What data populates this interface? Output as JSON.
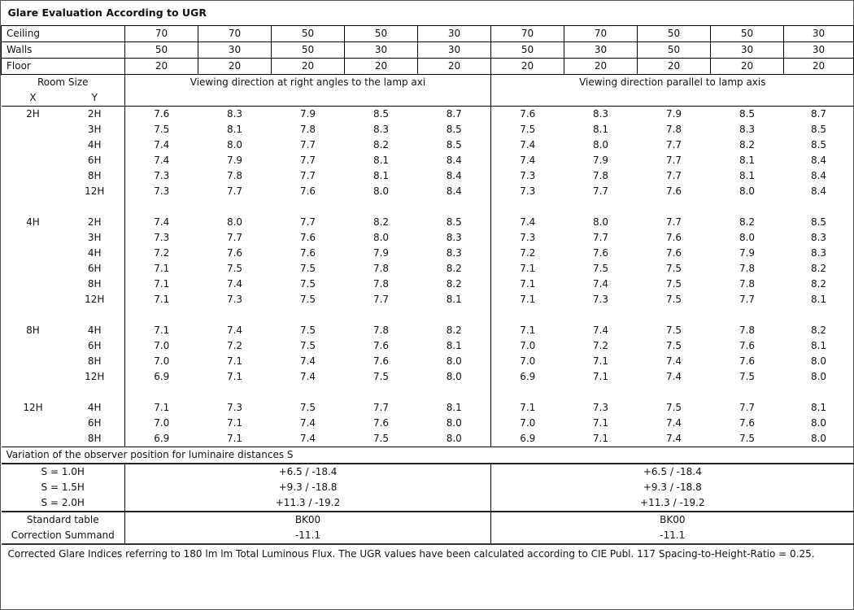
{
  "title": "Glare Evaluation According to UGR",
  "reflectances": [
    {
      "label": "Ceiling",
      "values": [
        "70",
        "70",
        "50",
        "50",
        "30",
        "70",
        "70",
        "50",
        "50",
        "30"
      ]
    },
    {
      "label": "Walls",
      "values": [
        "50",
        "30",
        "50",
        "30",
        "30",
        "50",
        "30",
        "50",
        "30",
        "30"
      ]
    },
    {
      "label": "Floor",
      "values": [
        "20",
        "20",
        "20",
        "20",
        "20",
        "20",
        "20",
        "20",
        "20",
        "20"
      ]
    }
  ],
  "header": {
    "room_size": "Room Size",
    "x": "X",
    "y": "Y",
    "perpendicular": "Viewing direction at right angles to the lamp axi",
    "parallel": "Viewing direction parallel to lamp axis"
  },
  "groups": [
    {
      "x": "2H",
      "rows": [
        {
          "y": "2H",
          "perp": [
            "7.6",
            "8.3",
            "7.9",
            "8.5",
            "8.7"
          ],
          "para": [
            "7.6",
            "8.3",
            "7.9",
            "8.5",
            "8.7"
          ]
        },
        {
          "y": "3H",
          "perp": [
            "7.5",
            "8.1",
            "7.8",
            "8.3",
            "8.5"
          ],
          "para": [
            "7.5",
            "8.1",
            "7.8",
            "8.3",
            "8.5"
          ]
        },
        {
          "y": "4H",
          "perp": [
            "7.4",
            "8.0",
            "7.7",
            "8.2",
            "8.5"
          ],
          "para": [
            "7.4",
            "8.0",
            "7.7",
            "8.2",
            "8.5"
          ]
        },
        {
          "y": "6H",
          "perp": [
            "7.4",
            "7.9",
            "7.7",
            "8.1",
            "8.4"
          ],
          "para": [
            "7.4",
            "7.9",
            "7.7",
            "8.1",
            "8.4"
          ]
        },
        {
          "y": "8H",
          "perp": [
            "7.3",
            "7.8",
            "7.7",
            "8.1",
            "8.4"
          ],
          "para": [
            "7.3",
            "7.8",
            "7.7",
            "8.1",
            "8.4"
          ]
        },
        {
          "y": "12H",
          "perp": [
            "7.3",
            "7.7",
            "7.6",
            "8.0",
            "8.4"
          ],
          "para": [
            "7.3",
            "7.7",
            "7.6",
            "8.0",
            "8.4"
          ]
        }
      ]
    },
    {
      "x": "4H",
      "rows": [
        {
          "y": "2H",
          "perp": [
            "7.4",
            "8.0",
            "7.7",
            "8.2",
            "8.5"
          ],
          "para": [
            "7.4",
            "8.0",
            "7.7",
            "8.2",
            "8.5"
          ]
        },
        {
          "y": "3H",
          "perp": [
            "7.3",
            "7.7",
            "7.6",
            "8.0",
            "8.3"
          ],
          "para": [
            "7.3",
            "7.7",
            "7.6",
            "8.0",
            "8.3"
          ]
        },
        {
          "y": "4H",
          "perp": [
            "7.2",
            "7.6",
            "7.6",
            "7.9",
            "8.3"
          ],
          "para": [
            "7.2",
            "7.6",
            "7.6",
            "7.9",
            "8.3"
          ]
        },
        {
          "y": "6H",
          "perp": [
            "7.1",
            "7.5",
            "7.5",
            "7.8",
            "8.2"
          ],
          "para": [
            "7.1",
            "7.5",
            "7.5",
            "7.8",
            "8.2"
          ]
        },
        {
          "y": "8H",
          "perp": [
            "7.1",
            "7.4",
            "7.5",
            "7.8",
            "8.2"
          ],
          "para": [
            "7.1",
            "7.4",
            "7.5",
            "7.8",
            "8.2"
          ]
        },
        {
          "y": "12H",
          "perp": [
            "7.1",
            "7.3",
            "7.5",
            "7.7",
            "8.1"
          ],
          "para": [
            "7.1",
            "7.3",
            "7.5",
            "7.7",
            "8.1"
          ]
        }
      ]
    },
    {
      "x": "8H",
      "rows": [
        {
          "y": "4H",
          "perp": [
            "7.1",
            "7.4",
            "7.5",
            "7.8",
            "8.2"
          ],
          "para": [
            "7.1",
            "7.4",
            "7.5",
            "7.8",
            "8.2"
          ]
        },
        {
          "y": "6H",
          "perp": [
            "7.0",
            "7.2",
            "7.5",
            "7.6",
            "8.1"
          ],
          "para": [
            "7.0",
            "7.2",
            "7.5",
            "7.6",
            "8.1"
          ]
        },
        {
          "y": "8H",
          "perp": [
            "7.0",
            "7.1",
            "7.4",
            "7.6",
            "8.0"
          ],
          "para": [
            "7.0",
            "7.1",
            "7.4",
            "7.6",
            "8.0"
          ]
        },
        {
          "y": "12H",
          "perp": [
            "6.9",
            "7.1",
            "7.4",
            "7.5",
            "8.0"
          ],
          "para": [
            "6.9",
            "7.1",
            "7.4",
            "7.5",
            "8.0"
          ]
        }
      ]
    },
    {
      "x": "12H",
      "rows": [
        {
          "y": "4H",
          "perp": [
            "7.1",
            "7.3",
            "7.5",
            "7.7",
            "8.1"
          ],
          "para": [
            "7.1",
            "7.3",
            "7.5",
            "7.7",
            "8.1"
          ]
        },
        {
          "y": "6H",
          "perp": [
            "7.0",
            "7.1",
            "7.4",
            "7.6",
            "8.0"
          ],
          "para": [
            "7.0",
            "7.1",
            "7.4",
            "7.6",
            "8.0"
          ]
        },
        {
          "y": "8H",
          "perp": [
            "6.9",
            "7.1",
            "7.4",
            "7.5",
            "8.0"
          ],
          "para": [
            "6.9",
            "7.1",
            "7.4",
            "7.5",
            "8.0"
          ]
        }
      ]
    }
  ],
  "variation": {
    "title": "Variation of the observer position for luminaire distances S",
    "rows": [
      {
        "label": "S = 1.0H",
        "perp": "+6.5 / -18.4",
        "para": "+6.5 / -18.4"
      },
      {
        "label": "S = 1.5H",
        "perp": "+9.3 / -18.8",
        "para": "+9.3 / -18.8"
      },
      {
        "label": "S = 2.0H",
        "perp": "+11.3 / -19.2",
        "para": "+11.3 / -19.2"
      }
    ]
  },
  "standard": [
    {
      "label": "Standard table",
      "perp": "BK00",
      "para": "BK00"
    },
    {
      "label": "Correction Summand",
      "perp": "-11.1",
      "para": "-11.1"
    }
  ],
  "footer": "Corrected Glare Indices referring to 180 lm lm Total Luminous Flux. The UGR values have been calculated according to CIE Publ. 117    Spacing-to-Height-Ratio = 0.25."
}
